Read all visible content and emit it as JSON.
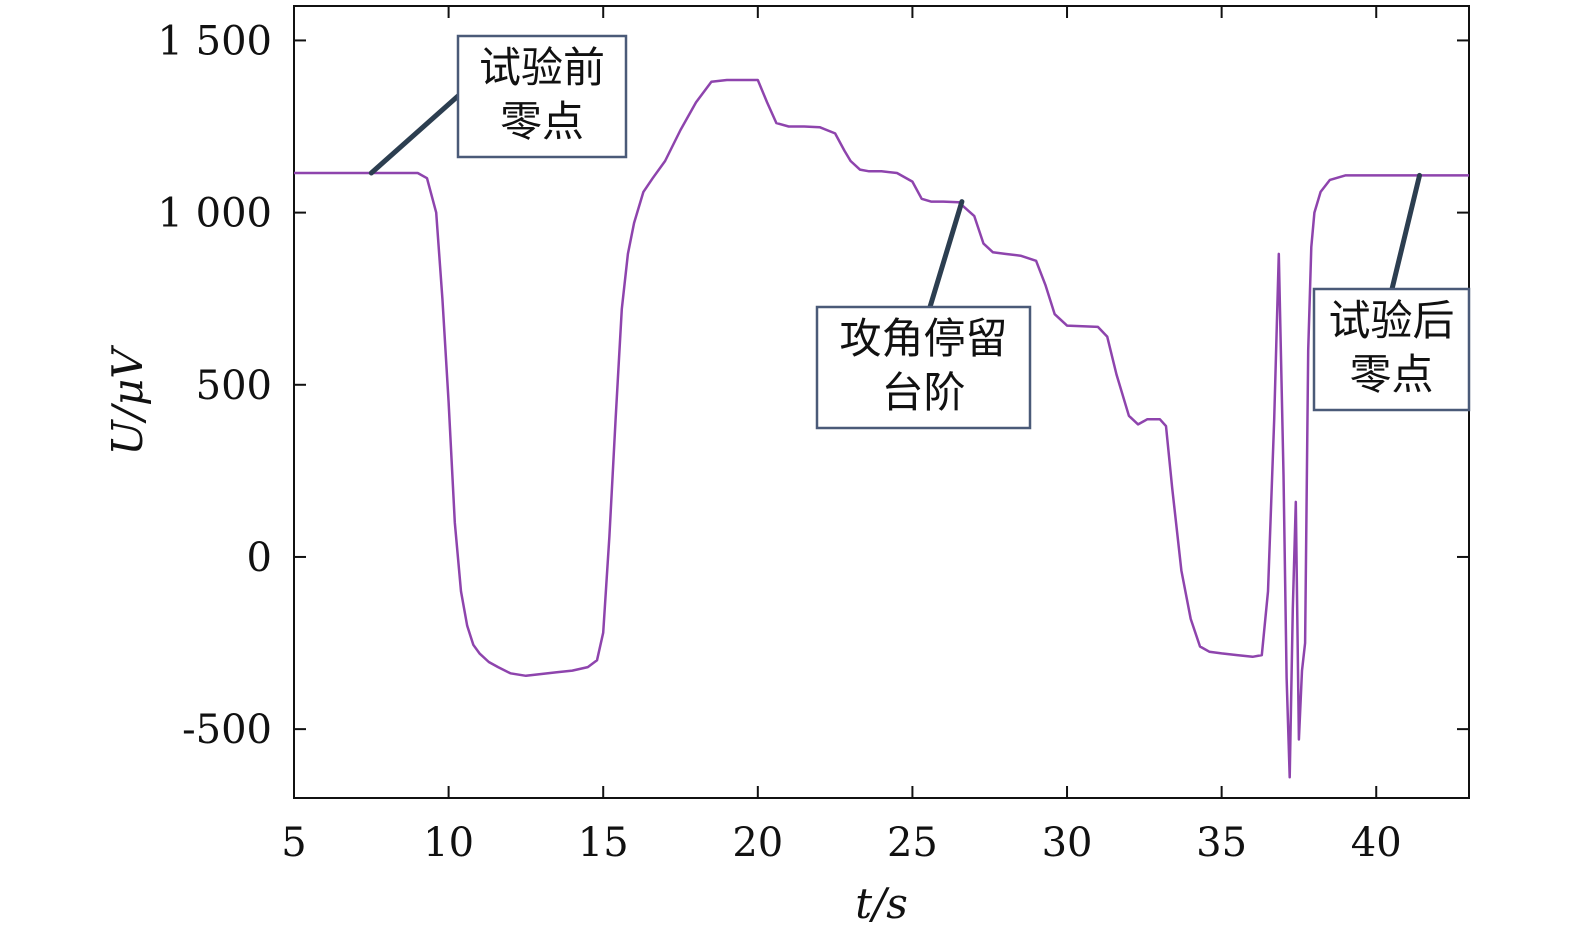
{
  "chart_data": {
    "type": "line",
    "title": "",
    "xlabel": "t/s",
    "ylabel": "U/μV",
    "xlim": [
      5,
      43
    ],
    "ylim": [
      -700,
      1600
    ],
    "xticks": [
      5,
      10,
      15,
      20,
      25,
      30,
      35,
      40
    ],
    "xtick_labels": [
      "5",
      "10",
      "15",
      "20",
      "25",
      "30",
      "35",
      "40"
    ],
    "yticks": [
      -500,
      0,
      500,
      1000,
      1500
    ],
    "ytick_labels": [
      "-500",
      "0",
      "500",
      "1 000",
      "1 500"
    ],
    "grid": false,
    "line_color": "#8e44ad",
    "annotation_color": "#2c3e50",
    "series": [
      {
        "x": [
          5,
          6,
          7,
          8,
          9,
          9.3,
          9.6,
          9.8,
          10.0,
          10.2,
          10.4,
          10.6,
          10.8,
          11.0,
          11.3,
          11.6,
          12.0,
          12.5,
          13.0,
          13.5,
          14.0,
          14.5,
          14.8,
          15.0,
          15.2,
          15.4,
          15.6,
          15.8,
          16.0,
          16.3,
          16.6,
          17.0,
          17.5,
          18.0,
          18.5,
          19.0,
          19.5,
          20.0,
          20.3,
          20.6,
          21.0,
          21.5,
          22.0,
          22.5,
          22.8,
          23.0,
          23.3,
          23.6,
          24.0,
          24.5,
          25.0,
          25.3,
          25.6,
          26.0,
          26.5,
          27.0,
          27.3,
          27.6,
          28.0,
          28.5,
          29.0,
          29.3,
          29.6,
          30.0,
          30.5,
          31.0,
          31.3,
          31.6,
          32.0,
          32.3,
          32.6,
          33.0,
          33.2,
          33.4,
          33.7,
          34.0,
          34.3,
          34.6,
          35.0,
          35.5,
          36.0,
          36.3,
          36.5,
          36.7,
          36.85,
          37.0,
          37.1,
          37.2,
          37.3,
          37.4,
          37.5,
          37.6,
          37.7,
          37.8,
          37.9,
          38.0,
          38.2,
          38.5,
          39.0,
          40.0,
          41.0,
          42.0,
          43.0
        ],
        "y": [
          1115,
          1115,
          1115,
          1115,
          1115,
          1100,
          1000,
          750,
          450,
          100,
          -100,
          -200,
          -255,
          -280,
          -305,
          -320,
          -338,
          -345,
          -340,
          -335,
          -330,
          -320,
          -300,
          -220,
          60,
          400,
          720,
          880,
          970,
          1060,
          1100,
          1150,
          1240,
          1320,
          1380,
          1385,
          1385,
          1385,
          1320,
          1260,
          1250,
          1250,
          1248,
          1230,
          1180,
          1150,
          1125,
          1120,
          1120,
          1115,
          1090,
          1040,
          1032,
          1032,
          1030,
          990,
          910,
          885,
          880,
          875,
          860,
          790,
          705,
          672,
          670,
          668,
          640,
          530,
          410,
          385,
          400,
          400,
          380,
          200,
          -40,
          -180,
          -260,
          -275,
          -280,
          -285,
          -290,
          -285,
          -100,
          400,
          880,
          240,
          -350,
          -640,
          -150,
          160,
          -530,
          -330,
          -250,
          600,
          900,
          1000,
          1060,
          1095,
          1108,
          1108,
          1108,
          1108,
          1108
        ]
      }
    ],
    "annotations": [
      {
        "lines": [
          "试验前",
          "零点"
        ],
        "point": [
          7.5,
          1115
        ]
      },
      {
        "lines": [
          "攻角停留",
          "台阶"
        ],
        "point": [
          26.6,
          1032
        ]
      },
      {
        "lines": [
          "试验后",
          "零点"
        ],
        "point": [
          41.4,
          1108
        ]
      }
    ]
  }
}
